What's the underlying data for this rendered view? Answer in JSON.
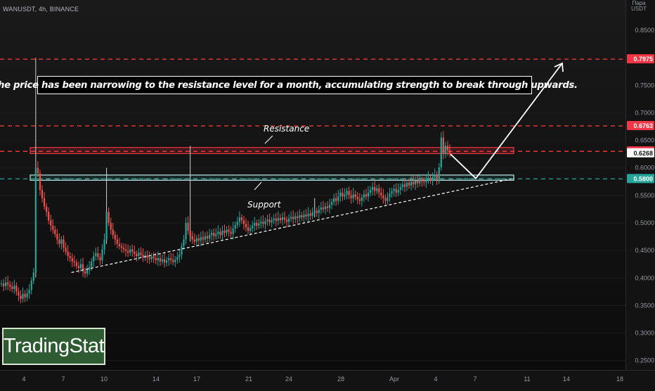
{
  "header": {
    "symbol": "WANUSDT, 4h, BINANCE",
    "axis_mode": "Пара",
    "currency": "USDT"
  },
  "annotation": {
    "text": "The price has been narrowing to the resistance level for a month, accumulating strength to break through upwards.",
    "resistance_label": "Resistance",
    "support_label": "Support"
  },
  "logo": {
    "text": "TradingStat"
  },
  "colors": {
    "background": "#131313",
    "up_candle": "#26a69a",
    "down_candle": "#ef5350",
    "resistance": "#f23645",
    "support": "#26a69a",
    "target_line": "#ff3b3b",
    "current_price_bg": "#ffffff"
  },
  "chart_data": {
    "type": "candlestick",
    "symbol": "WANUSDT",
    "timeframe": "4h",
    "exchange": "BINANCE",
    "x_ticks": [
      "4",
      "7",
      "10",
      "14",
      "17",
      "21",
      "24",
      "28",
      "Apr",
      "4",
      "7",
      "11",
      "14",
      "18"
    ],
    "y_ticks": [
      "0.8500",
      "0.7500",
      "0.7000",
      "0.6500",
      "0.6000",
      "0.5500",
      "0.5000",
      "0.4500",
      "0.4000",
      "0.3500",
      "0.3000",
      "0.2500"
    ],
    "ylim": [
      0.233,
      0.905
    ],
    "price_labels": [
      {
        "value": "0.7975",
        "style": "red"
      },
      {
        "value": "0.6763",
        "style": "red"
      },
      {
        "value": "0.6301",
        "style": "red"
      },
      {
        "value": "0.6268",
        "style": "current"
      },
      {
        "value": "0.5800",
        "style": "teal"
      }
    ],
    "levels": {
      "target": 0.7975,
      "high_breakout": 0.6763,
      "resistance_top": 0.637,
      "resistance_bottom": 0.626,
      "resistance_dashed": 0.6301,
      "support_top": 0.587,
      "support_bottom": 0.5775,
      "support_dashed": 0.58
    },
    "trendline": [
      [
        0.4,
        0.41
      ],
      [
        30.6,
        0.58
      ]
    ],
    "projection": [
      [
        29.7,
        0.625
      ],
      [
        31.5,
        0.581
      ],
      [
        36.5,
        0.79
      ]
    ],
    "close_series": [
      0.39,
      0.385,
      0.392,
      0.388,
      0.384,
      0.38,
      0.386,
      0.375,
      0.368,
      0.362,
      0.371,
      0.365,
      0.372,
      0.378,
      0.395,
      0.41,
      0.6,
      0.59,
      0.56,
      0.545,
      0.53,
      0.52,
      0.505,
      0.495,
      0.488,
      0.48,
      0.47,
      0.462,
      0.47,
      0.455,
      0.448,
      0.44,
      0.436,
      0.43,
      0.428,
      0.422,
      0.418,
      0.425,
      0.412,
      0.408,
      0.415,
      0.42,
      0.43,
      0.44,
      0.445,
      0.438,
      0.432,
      0.452,
      0.47,
      0.52,
      0.5,
      0.488,
      0.478,
      0.47,
      0.462,
      0.458,
      0.455,
      0.452,
      0.449,
      0.446,
      0.452,
      0.448,
      0.444,
      0.44,
      0.446,
      0.442,
      0.438,
      0.441,
      0.437,
      0.434,
      0.439,
      0.436,
      0.432,
      0.436,
      0.43,
      0.434,
      0.428,
      0.432,
      0.436,
      0.433,
      0.429,
      0.433,
      0.438,
      0.442,
      0.458,
      0.47,
      0.5,
      0.486,
      0.476,
      0.47,
      0.466,
      0.472,
      0.468,
      0.474,
      0.47,
      0.476,
      0.472,
      0.478,
      0.482,
      0.476,
      0.48,
      0.484,
      0.478,
      0.486,
      0.482,
      0.488,
      0.484,
      0.48,
      0.49,
      0.496,
      0.502,
      0.51,
      0.505,
      0.498,
      0.492,
      0.486,
      0.49,
      0.495,
      0.5,
      0.495,
      0.499,
      0.502,
      0.498,
      0.503,
      0.506,
      0.501,
      0.505,
      0.508,
      0.504,
      0.509,
      0.505,
      0.51,
      0.506,
      0.502,
      0.508,
      0.511,
      0.507,
      0.512,
      0.509,
      0.514,
      0.51,
      0.515,
      0.512,
      0.517,
      0.513,
      0.519,
      0.522,
      0.518,
      0.524,
      0.528,
      0.525,
      0.53,
      0.527,
      0.533,
      0.538,
      0.545,
      0.54,
      0.548,
      0.555,
      0.548,
      0.552,
      0.558,
      0.55,
      0.545,
      0.552,
      0.547,
      0.543,
      0.54,
      0.546,
      0.552,
      0.548,
      0.555,
      0.56,
      0.565,
      0.558,
      0.563,
      0.555,
      0.55,
      0.545,
      0.54,
      0.547,
      0.553,
      0.558,
      0.562,
      0.555,
      0.56,
      0.565,
      0.57,
      0.566,
      0.573,
      0.568,
      0.575,
      0.57,
      0.577,
      0.572,
      0.578,
      0.575,
      0.574,
      0.579,
      0.582,
      0.577,
      0.583,
      0.588,
      0.579,
      0.601,
      0.655,
      0.625,
      0.64,
      0.632,
      0.627
    ],
    "wick_events": [
      {
        "index": 16,
        "value": 0.8
      },
      {
        "index": 49,
        "value": 0.6
      },
      {
        "index": 88,
        "value": 0.64
      },
      {
        "index": 146,
        "value": 0.545
      },
      {
        "index": 219,
        "value": 0.676
      }
    ]
  }
}
